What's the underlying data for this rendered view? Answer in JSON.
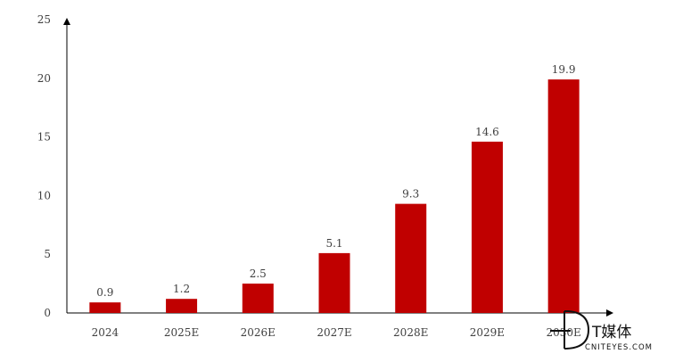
{
  "chart_data": {
    "type": "bar",
    "categories": [
      "2024",
      "2025E",
      "2026E",
      "2027E",
      "2028E",
      "2029E",
      "2030E"
    ],
    "values": [
      0.9,
      1.2,
      2.5,
      5.1,
      9.3,
      14.6,
      19.9
    ],
    "data_labels": [
      "0.9",
      "1.2",
      "2.5",
      "5.1",
      "9.3",
      "14.6",
      "19.9"
    ],
    "yticks": [
      0,
      5,
      10,
      15,
      20,
      25
    ],
    "ylim": [
      0,
      25
    ],
    "grid": false,
    "legend": "none",
    "bar_color": "#C00000"
  },
  "watermark": {
    "brand": "T媒体",
    "domain": "CNITEYES.COM"
  }
}
